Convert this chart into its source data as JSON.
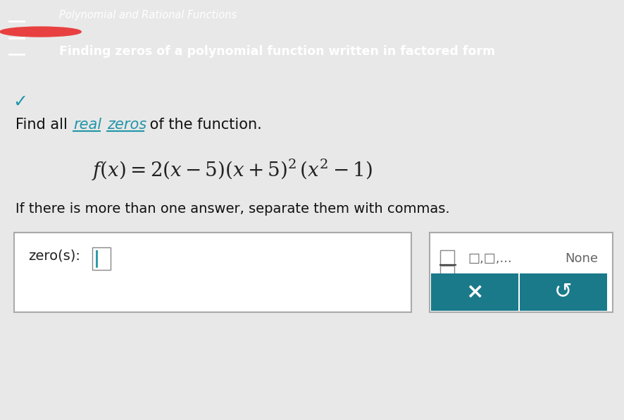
{
  "header_bg_color": "#2196A8",
  "header_circle_color": "#E84040",
  "header_line1": "Polynomial and Rational Functions",
  "header_line2": "Finding zeros of a polynomial function written in factored form",
  "body_bg_color": "#E8E8E8",
  "main_bg_color": "#F0F0F0",
  "below_text": "If there is more than one answer, separate them with commas.",
  "zero_label": "zero(s):",
  "input_box_color": "#FFFFFF",
  "input_box_border": "#AAAAAA",
  "comma_text": "□,□,...",
  "none_text": "None",
  "button_color": "#1A7A8A",
  "x_button_text": "×",
  "redo_button_symbol": "↺",
  "checkmark_color": "#2196A8"
}
